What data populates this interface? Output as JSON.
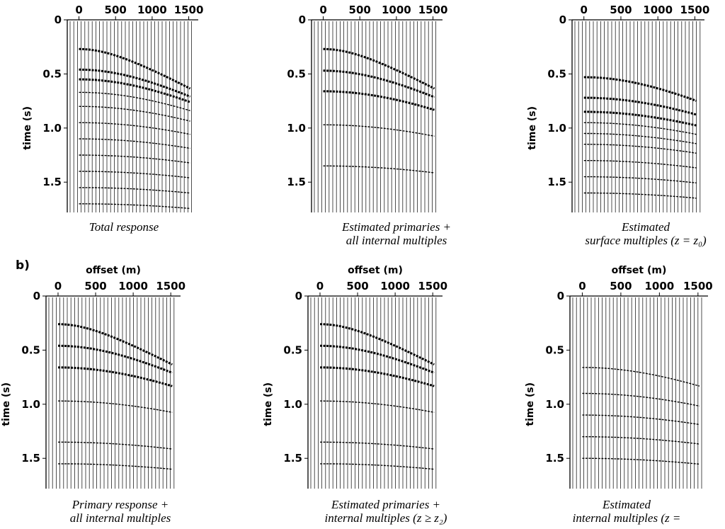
{
  "figure_label": "b)",
  "axes": {
    "xlim": [
      -160,
      1630
    ],
    "ylim": [
      0,
      1.78
    ],
    "xticks": [
      0,
      500,
      1000,
      1500
    ],
    "yticks": [
      0,
      {
        "value": 0.5,
        "label": "0.5"
      },
      {
        "value": 1.0,
        "label": "1.0"
      },
      {
        "value": 1.5,
        "label": "1.5"
      }
    ]
  },
  "panels": [
    {
      "ylabel": "time (s)",
      "caption": [
        "Total response"
      ]
    },
    {
      "caption": [
        "Estimated primaries +",
        "all internal multiples"
      ]
    },
    {
      "ylabel": "time (s)",
      "caption": [
        "Estimated",
        "surface multiples (z = z₀)"
      ]
    },
    {
      "xlabel": "offset (m)",
      "ylabel": "time (s)",
      "caption": [
        "Primary response +",
        "all internal multiples"
      ]
    },
    {
      "xlabel": "offset (m)",
      "ylabel": "time (s)",
      "caption": [
        "Estimated primaries +",
        "internal multiples (z ≥ z₂)"
      ]
    },
    {
      "xlabel": "offset (m)",
      "ylabel": "time (s)",
      "caption": [
        "Estimated",
        "internal multiples (z ="
      ]
    }
  ]
}
